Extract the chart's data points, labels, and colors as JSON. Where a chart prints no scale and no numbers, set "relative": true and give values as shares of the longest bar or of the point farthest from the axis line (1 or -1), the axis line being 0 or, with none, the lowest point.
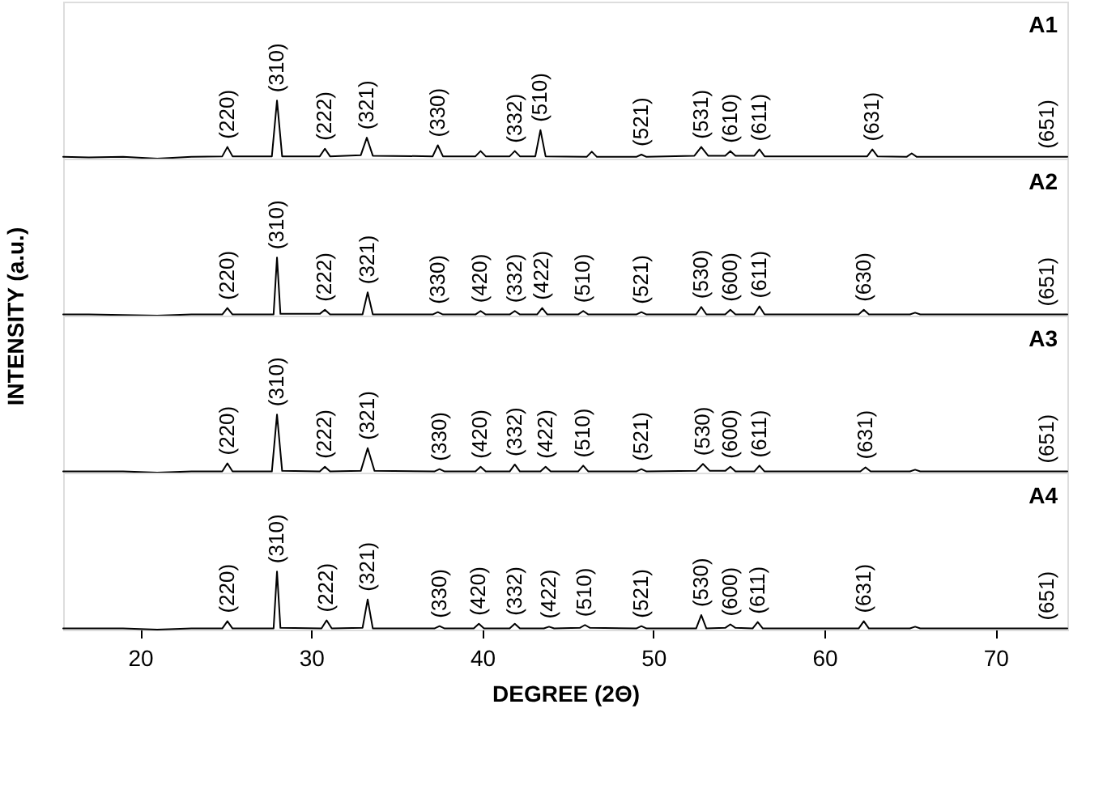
{
  "chart_data": [
    {
      "type": "line",
      "relative": true,
      "xlim": [
        15.5,
        74.2
      ],
      "tick_labels": false,
      "grid": false,
      "legend": false,
      "series": [
        {
          "name": "A1",
          "color": "#000000",
          "x": [
            15.5,
            17,
            19,
            21,
            23,
            24.8,
            25.1,
            25.4,
            27.7,
            28.0,
            28.3,
            30.5,
            30.8,
            31.1,
            32.9,
            33.25,
            33.6,
            37.1,
            37.4,
            37.7,
            39.6,
            39.9,
            40.2,
            41.6,
            41.9,
            42.2,
            43.1,
            43.4,
            43.7,
            46.1,
            46.4,
            46.7,
            49.0,
            49.3,
            49.6,
            52.4,
            52.8,
            53.2,
            54.2,
            54.5,
            54.8,
            55.9,
            56.2,
            56.5,
            62.5,
            62.8,
            63.1,
            64.8,
            65.1,
            65.4,
            68,
            71,
            73.0,
            74.2
          ],
          "values": [
            0.03,
            0.02,
            0.03,
            0,
            0.03,
            0.04,
            0.2,
            0.04,
            0.04,
            1.0,
            0.04,
            0.04,
            0.17,
            0.04,
            0.06,
            0.36,
            0.05,
            0.04,
            0.23,
            0.04,
            0.04,
            0.13,
            0.04,
            0.04,
            0.13,
            0.04,
            0.04,
            0.49,
            0.04,
            0.03,
            0.12,
            0.03,
            0.03,
            0.07,
            0.03,
            0.05,
            0.2,
            0.05,
            0.05,
            0.13,
            0.05,
            0.05,
            0.16,
            0.04,
            0.04,
            0.16,
            0.04,
            0.03,
            0.09,
            0.03,
            0.03,
            0.03,
            0.03,
            0.03
          ]
        }
      ],
      "annotations": [
        {
          "text": "(220)",
          "x": 25.1,
          "y": 0.2
        },
        {
          "text": "(310)",
          "x": 28.0,
          "y": 1.0
        },
        {
          "text": "(222)",
          "x": 30.8,
          "y": 0.17
        },
        {
          "text": "(321)",
          "x": 33.25,
          "y": 0.36
        },
        {
          "text": "(330)",
          "x": 37.4,
          "y": 0.23
        },
        {
          "text": "(332)",
          "x": 41.9,
          "y": 0.13
        },
        {
          "text": "(510)",
          "x": 43.4,
          "y": 0.49
        },
        {
          "text": "(521)",
          "x": 49.3,
          "y": 0.07
        },
        {
          "text": "(531)",
          "x": 52.8,
          "y": 0.2
        },
        {
          "text": "(610)",
          "x": 54.5,
          "y": 0.13
        },
        {
          "text": "(611)",
          "x": 56.2,
          "y": 0.16
        },
        {
          "text": "(631)",
          "x": 62.8,
          "y": 0.16
        },
        {
          "text": "(651)",
          "x": 73.0,
          "y": 0.03
        }
      ]
    },
    {
      "type": "line",
      "relative": true,
      "xlim": [
        15.5,
        74.2
      ],
      "tick_labels": false,
      "grid": false,
      "legend": false,
      "ylabel": "INTENSITY (a.u.)",
      "series": [
        {
          "name": "A2",
          "color": "#000000",
          "x": [
            15.5,
            17,
            19,
            21,
            23,
            24.8,
            25.1,
            25.4,
            27.8,
            28.0,
            28.2,
            30.5,
            30.8,
            31.1,
            33.0,
            33.3,
            33.6,
            37.1,
            37.4,
            37.7,
            39.6,
            39.9,
            40.2,
            41.6,
            41.9,
            42.2,
            43.2,
            43.5,
            43.8,
            45.6,
            45.9,
            46.2,
            49.0,
            49.3,
            49.6,
            52.5,
            52.8,
            53.1,
            54.2,
            54.5,
            54.8,
            55.9,
            56.2,
            56.5,
            62.0,
            62.3,
            62.6,
            65.0,
            65.3,
            65.6,
            68,
            71,
            73.0,
            74.2
          ],
          "values": [
            0.02,
            0.02,
            0.01,
            0,
            0.02,
            0.02,
            0.13,
            0.02,
            0.02,
            1.0,
            0.03,
            0.03,
            0.1,
            0.02,
            0.02,
            0.4,
            0.02,
            0.02,
            0.06,
            0.02,
            0.02,
            0.08,
            0.02,
            0.02,
            0.08,
            0.02,
            0.02,
            0.13,
            0.02,
            0.02,
            0.08,
            0.02,
            0.02,
            0.06,
            0.02,
            0.02,
            0.15,
            0.02,
            0.02,
            0.1,
            0.02,
            0.02,
            0.16,
            0.02,
            0.02,
            0.1,
            0.02,
            0.02,
            0.05,
            0.02,
            0.02,
            0.02,
            0.02,
            0.02
          ]
        }
      ],
      "annotations": [
        {
          "text": "(220)",
          "x": 25.1,
          "y": 0.13
        },
        {
          "text": "(310)",
          "x": 28.0,
          "y": 1.0
        },
        {
          "text": "(222)",
          "x": 30.8,
          "y": 0.1
        },
        {
          "text": "(321)",
          "x": 33.3,
          "y": 0.4
        },
        {
          "text": "(330)",
          "x": 37.4,
          "y": 0.06
        },
        {
          "text": "(420)",
          "x": 39.9,
          "y": 0.08
        },
        {
          "text": "(332)",
          "x": 41.9,
          "y": 0.08
        },
        {
          "text": "(422)",
          "x": 43.5,
          "y": 0.13
        },
        {
          "text": "(510)",
          "x": 45.9,
          "y": 0.08
        },
        {
          "text": "(521)",
          "x": 49.3,
          "y": 0.06
        },
        {
          "text": "(530)",
          "x": 52.8,
          "y": 0.15
        },
        {
          "text": "(600)",
          "x": 54.5,
          "y": 0.1
        },
        {
          "text": "(611)",
          "x": 56.2,
          "y": 0.16
        },
        {
          "text": "(630)",
          "x": 62.3,
          "y": 0.1
        },
        {
          "text": "(651)",
          "x": 73.0,
          "y": 0.02
        }
      ]
    },
    {
      "type": "line",
      "relative": true,
      "xlim": [
        15.5,
        74.2
      ],
      "tick_labels": false,
      "grid": false,
      "legend": false,
      "series": [
        {
          "name": "A3",
          "color": "#000000",
          "x": [
            15.5,
            17,
            19,
            21,
            23,
            24.8,
            25.1,
            25.4,
            27.7,
            28.0,
            28.3,
            30.5,
            30.8,
            31.1,
            32.9,
            33.3,
            33.7,
            37.2,
            37.5,
            37.8,
            39.6,
            39.9,
            40.2,
            41.6,
            41.9,
            42.2,
            43.4,
            43.7,
            44.0,
            45.6,
            45.9,
            46.2,
            49.0,
            49.3,
            49.6,
            52.5,
            52.9,
            53.3,
            54.2,
            54.5,
            54.8,
            55.9,
            56.2,
            56.5,
            62.1,
            62.4,
            62.7,
            65.0,
            65.3,
            65.6,
            68,
            71,
            73.0,
            74.2
          ],
          "values": [
            0.02,
            0.02,
            0.02,
            0,
            0.02,
            0.02,
            0.16,
            0.02,
            0.02,
            1.0,
            0.03,
            0.02,
            0.1,
            0.02,
            0.03,
            0.42,
            0.03,
            0.02,
            0.06,
            0.02,
            0.02,
            0.1,
            0.02,
            0.02,
            0.14,
            0.02,
            0.02,
            0.1,
            0.02,
            0.02,
            0.12,
            0.02,
            0.02,
            0.06,
            0.02,
            0.03,
            0.15,
            0.03,
            0.03,
            0.1,
            0.02,
            0.02,
            0.12,
            0.02,
            0.02,
            0.09,
            0.02,
            0.02,
            0.05,
            0.02,
            0.02,
            0.02,
            0.02,
            0.02
          ]
        }
      ],
      "annotations": [
        {
          "text": "(220)",
          "x": 25.1,
          "y": 0.16
        },
        {
          "text": "(310)",
          "x": 28.0,
          "y": 1.0
        },
        {
          "text": "(222)",
          "x": 30.8,
          "y": 0.1
        },
        {
          "text": "(321)",
          "x": 33.3,
          "y": 0.42
        },
        {
          "text": "(330)",
          "x": 37.5,
          "y": 0.06
        },
        {
          "text": "(420)",
          "x": 39.9,
          "y": 0.1
        },
        {
          "text": "(332)",
          "x": 41.9,
          "y": 0.14
        },
        {
          "text": "(422)",
          "x": 43.7,
          "y": 0.1
        },
        {
          "text": "(510)",
          "x": 45.9,
          "y": 0.12
        },
        {
          "text": "(521)",
          "x": 49.3,
          "y": 0.06
        },
        {
          "text": "(530)",
          "x": 52.9,
          "y": 0.15
        },
        {
          "text": "(600)",
          "x": 54.5,
          "y": 0.1
        },
        {
          "text": "(611)",
          "x": 56.2,
          "y": 0.12
        },
        {
          "text": "(631)",
          "x": 62.4,
          "y": 0.09
        },
        {
          "text": "(651)",
          "x": 73.0,
          "y": 0.02
        }
      ]
    },
    {
      "type": "line",
      "relative": true,
      "xlim": [
        15.5,
        74.2
      ],
      "xticks": [
        20,
        30,
        40,
        50,
        60,
        70
      ],
      "tick_labels": "x",
      "grid": false,
      "legend": false,
      "xlabel": "DEGREE (2Θ)",
      "series": [
        {
          "name": "A4",
          "color": "#000000",
          "x": [
            15.5,
            17,
            19,
            21,
            23,
            24.8,
            25.1,
            25.4,
            27.8,
            28.0,
            28.2,
            30.6,
            30.9,
            31.2,
            33.0,
            33.3,
            33.6,
            37.2,
            37.5,
            37.8,
            39.5,
            39.8,
            40.1,
            41.6,
            41.9,
            42.2,
            43.6,
            43.9,
            44.2,
            45.7,
            46.0,
            46.3,
            49.0,
            49.3,
            49.6,
            52.5,
            52.8,
            53.1,
            54.2,
            54.5,
            54.8,
            55.8,
            56.1,
            56.4,
            62.0,
            62.3,
            62.6,
            65.0,
            65.3,
            65.6,
            68,
            71,
            73.0,
            74.2
          ],
          "values": [
            0.02,
            0.02,
            0.02,
            0,
            0.02,
            0.02,
            0.145,
            0.02,
            0.02,
            1.0,
            0.03,
            0.02,
            0.16,
            0.02,
            0.03,
            0.52,
            0.02,
            0.02,
            0.06,
            0.02,
            0.02,
            0.1,
            0.02,
            0.02,
            0.1,
            0.02,
            0.02,
            0.05,
            0.02,
            0.03,
            0.08,
            0.03,
            0.02,
            0.06,
            0.02,
            0.02,
            0.25,
            0.02,
            0.03,
            0.09,
            0.03,
            0.02,
            0.13,
            0.02,
            0.02,
            0.145,
            0.02,
            0.02,
            0.05,
            0.02,
            0.02,
            0.02,
            0.02,
            0.02
          ]
        }
      ],
      "annotations": [
        {
          "text": "(220)",
          "x": 25.1,
          "y": 0.145
        },
        {
          "text": "(310)",
          "x": 28.0,
          "y": 1.0
        },
        {
          "text": "(222)",
          "x": 30.9,
          "y": 0.16
        },
        {
          "text": "(321)",
          "x": 33.3,
          "y": 0.52
        },
        {
          "text": "(330)",
          "x": 37.5,
          "y": 0.06
        },
        {
          "text": "(420)",
          "x": 39.8,
          "y": 0.1
        },
        {
          "text": "(332)",
          "x": 41.9,
          "y": 0.1
        },
        {
          "text": "(422)",
          "x": 43.9,
          "y": 0.05
        },
        {
          "text": "(510)",
          "x": 46.0,
          "y": 0.08
        },
        {
          "text": "(521)",
          "x": 49.3,
          "y": 0.06
        },
        {
          "text": "(530)",
          "x": 52.8,
          "y": 0.25
        },
        {
          "text": "(600)",
          "x": 54.5,
          "y": 0.09
        },
        {
          "text": "(611)",
          "x": 56.1,
          "y": 0.13
        },
        {
          "text": "(631)",
          "x": 62.3,
          "y": 0.145
        },
        {
          "text": "(651)",
          "x": 73.0,
          "y": 0.02
        }
      ]
    }
  ]
}
